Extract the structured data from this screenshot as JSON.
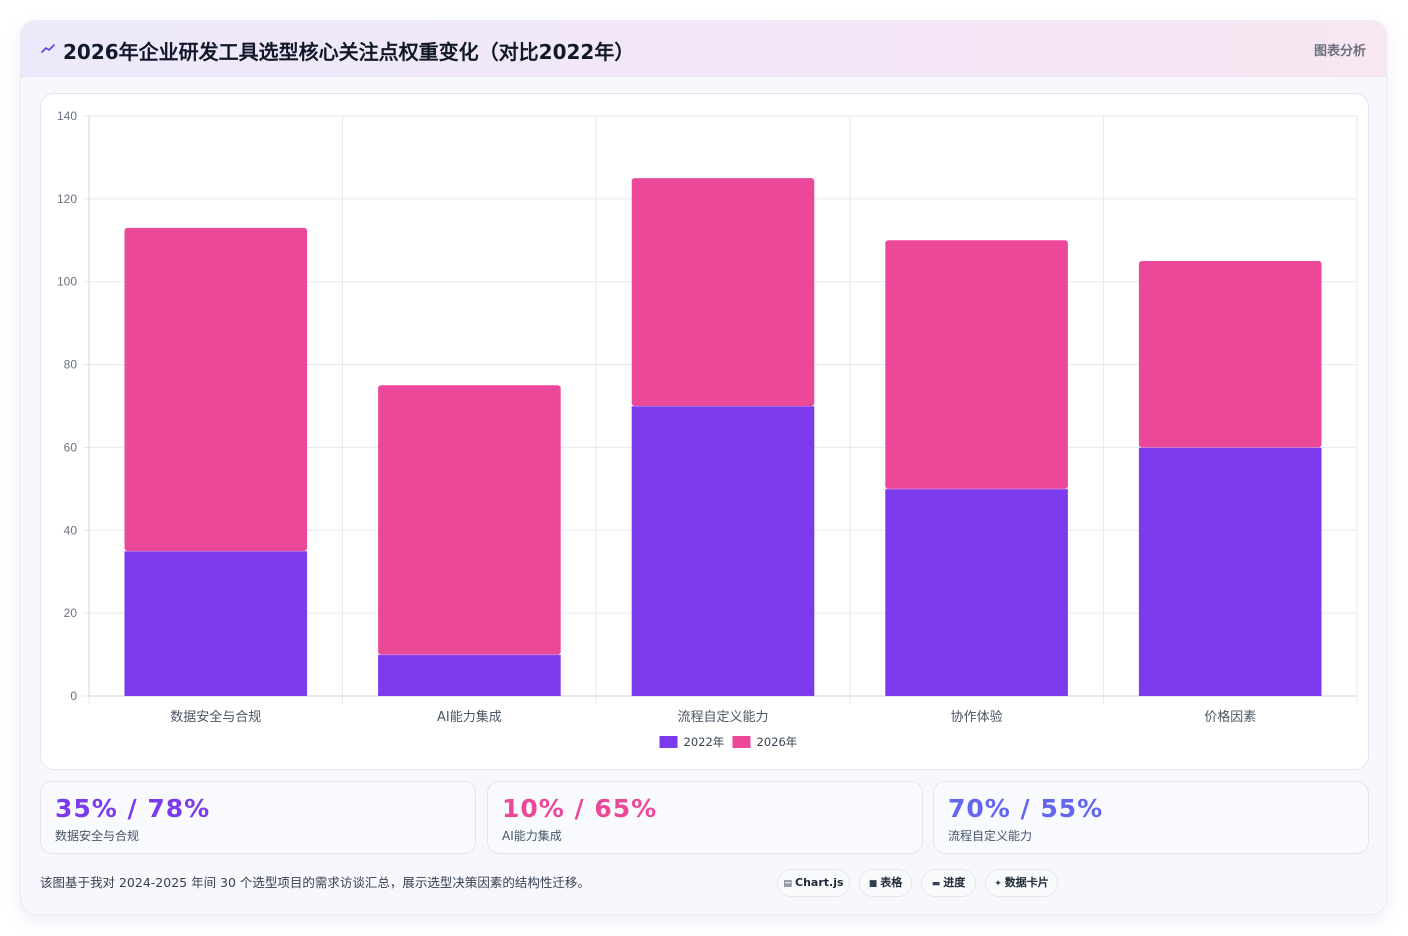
{
  "header": {
    "title": "2026年企业研发工具选型核心关注点权重变化（对比2022年）",
    "badge": "图表分析",
    "logo_icon": "trend-line-icon"
  },
  "colors": {
    "series_2022": "#7c3aed",
    "series_2026": "#ec4899",
    "stat_1": "#7c3aed",
    "stat_2": "#ec4899",
    "stat_3": "#6366f1",
    "grid": "#e5eaf0",
    "tick": "#6b7280"
  },
  "chart_data": {
    "type": "bar",
    "stacked": true,
    "categories": [
      "数据安全与合规",
      "AI能力集成",
      "流程自定义能力",
      "协作体验",
      "价格因素"
    ],
    "series": [
      {
        "name": "2022年",
        "values": [
          35,
          10,
          70,
          50,
          60
        ]
      },
      {
        "name": "2026年",
        "values": [
          78,
          65,
          55,
          60,
          45
        ]
      }
    ],
    "ylim": [
      0,
      140
    ],
    "yticks": [
      0,
      20,
      40,
      60,
      80,
      100,
      120,
      140
    ],
    "grid": true,
    "legend": "bottom-center"
  },
  "stats": [
    {
      "value": "35% / 78%",
      "label": "数据安全与合规"
    },
    {
      "value": "10% / 65%",
      "label": "AI能力集成"
    },
    {
      "value": "70% / 55%",
      "label": "流程自定义能力"
    }
  ],
  "footnote": "该图基于我对 2024-2025 年间 30 个选型项目的需求访谈汇总，展示选型决策因素的结构性迁移。",
  "chips": [
    {
      "label": "Chart.js",
      "icon": "chart-icon"
    },
    {
      "label": "表格",
      "icon": "table-icon"
    },
    {
      "label": "进度",
      "icon": "progress-icon"
    },
    {
      "label": "数据卡片",
      "icon": "sparkle-icon"
    }
  ]
}
